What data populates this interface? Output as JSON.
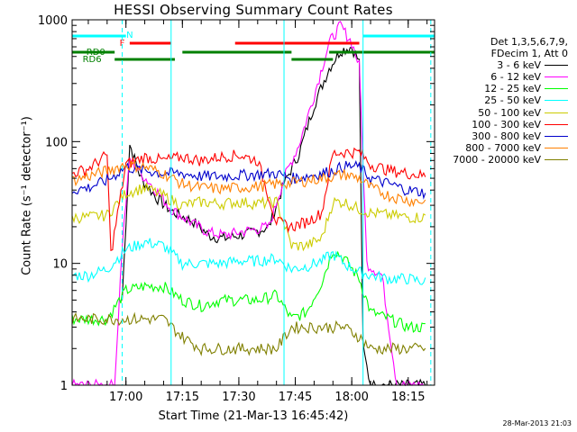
{
  "chart_data": {
    "type": "line",
    "title": "HESSI Observing Summary Count Rates",
    "xlabel": "Start Time (21-Mar-13 16:45:42)",
    "ylabel": "Count Rate (s⁻¹ detector⁻¹)",
    "x_ticks": [
      "17:00",
      "17:15",
      "17:30",
      "17:45",
      "18:00",
      "18:15"
    ],
    "y_ticks": [
      "1",
      "10",
      "100",
      "1000"
    ],
    "ylim": [
      1,
      1000
    ],
    "y_scale": "log",
    "xlim": [
      "16:45:42",
      "18:22:00"
    ],
    "legend_title": [
      "Det 1,3,5,6,7,9,",
      "FDecim 1, Att 0"
    ],
    "legend_position": "right",
    "timestamp": "28-Mar-2013 21:03",
    "flag_labels": {
      "n": "N",
      "f": "F",
      "rd0": "RD0",
      "rd6": "RD6"
    },
    "colors": {
      "n": "#00ffff",
      "f": "#ff0000",
      "rd": "#008000"
    },
    "series": [
      {
        "name": "3 - 6 keV",
        "color": "#000000",
        "x": [
          "16:45:42",
          "16:57",
          "16:59",
          "17:01",
          "17:04",
          "17:08",
          "17:12",
          "17:18",
          "17:22",
          "17:26",
          "17:30",
          "17:34",
          "17:38",
          "17:42",
          "17:46",
          "17:50",
          "17:54",
          "17:57",
          "18:00",
          "18:02",
          "18:03",
          "18:05",
          "18:08",
          "18:12",
          "18:16",
          "18:20"
        ],
        "values": [
          null,
          null,
          5,
          95,
          50,
          35,
          27,
          22,
          17,
          16,
          17,
          18,
          20,
          45,
          80,
          200,
          400,
          560,
          600,
          450,
          2,
          1,
          1,
          1,
          1,
          1
        ]
      },
      {
        "name": "6 - 12 keV",
        "color": "#ff00ff",
        "x": [
          "16:45:42",
          "16:57",
          "16:59",
          "17:01",
          "17:04",
          "17:08",
          "17:12",
          "17:18",
          "17:22",
          "17:26",
          "17:30",
          "17:34",
          "17:38",
          "17:42",
          "17:46",
          "17:50",
          "17:54",
          "17:57",
          "18:00",
          "18:02",
          "18:04",
          "18:08",
          "18:12",
          "18:16",
          "18:20"
        ],
        "values": [
          1,
          1,
          14,
          72,
          55,
          40,
          28,
          21,
          18,
          17,
          18,
          19,
          20,
          50,
          95,
          240,
          650,
          900,
          650,
          420,
          10,
          8,
          1,
          1,
          1
        ]
      },
      {
        "name": "12 - 25 keV",
        "color": "#00ff00",
        "x": [
          "16:45:42",
          "16:50",
          "16:55",
          "17:00",
          "17:05",
          "17:10",
          "17:15",
          "17:20",
          "17:25",
          "17:30",
          "17:35",
          "17:40",
          "17:44",
          "17:48",
          "17:52",
          "17:55",
          "17:58",
          "18:02",
          "18:05",
          "18:10",
          "18:15",
          "18:20"
        ],
        "values": [
          3.5,
          3.5,
          3.5,
          6,
          6.5,
          6.5,
          5,
          4.5,
          5,
          5,
          5,
          5.5,
          3.5,
          4,
          7,
          13,
          11,
          7.5,
          4,
          3.5,
          3,
          3
        ]
      },
      {
        "name": "25 - 50 keV",
        "color": "#00ffff",
        "x": [
          "16:45:42",
          "16:50",
          "16:55",
          "17:00",
          "17:05",
          "17:10",
          "17:15",
          "17:20",
          "17:25",
          "17:30",
          "17:35",
          "17:40",
          "17:44",
          "17:48",
          "17:52",
          "17:55",
          "17:58",
          "18:02",
          "18:05",
          "18:10",
          "18:15",
          "18:20"
        ],
        "values": [
          8,
          8,
          9,
          13,
          15,
          14,
          10,
          10,
          10,
          10.5,
          10.5,
          11,
          9,
          9.5,
          10.5,
          12,
          10,
          8.5,
          8,
          7.5,
          7.5,
          7
        ]
      },
      {
        "name": "50 - 100 keV",
        "color": "#cccc00",
        "x": [
          "16:45:42",
          "16:50",
          "16:55",
          "17:00",
          "17:05",
          "17:10",
          "17:15",
          "17:20",
          "17:25",
          "17:30",
          "17:35",
          "17:40",
          "17:44",
          "17:48",
          "17:52",
          "17:55",
          "17:58",
          "18:02",
          "18:05",
          "18:10",
          "18:15",
          "18:20"
        ],
        "values": [
          24,
          24,
          25,
          38,
          42,
          36,
          30,
          32,
          31,
          32,
          31,
          32,
          14,
          14,
          16,
          32,
          32,
          28,
          26,
          25,
          24,
          24
        ]
      },
      {
        "name": "100 - 300 keV",
        "color": "#ff0000",
        "x": [
          "16:45:42",
          "16:50",
          "16:55",
          "16:56",
          "17:00",
          "17:05",
          "17:10",
          "17:15",
          "17:20",
          "17:25",
          "17:30",
          "17:35",
          "17:40",
          "17:44",
          "17:48",
          "17:52",
          "17:55",
          "17:58",
          "18:02",
          "18:05",
          "18:10",
          "18:15",
          "18:20"
        ],
        "values": [
          55,
          60,
          78,
          12,
          65,
          75,
          70,
          75,
          70,
          75,
          78,
          70,
          22,
          20,
          22,
          26,
          80,
          82,
          82,
          65,
          58,
          55,
          52
        ]
      },
      {
        "name": "300 - 800 keV",
        "color": "#0000cc",
        "x": [
          "16:45:42",
          "16:50",
          "16:55",
          "17:00",
          "17:05",
          "17:10",
          "17:15",
          "17:20",
          "17:25",
          "17:30",
          "17:35",
          "17:40",
          "17:44",
          "17:48",
          "17:52",
          "17:55",
          "17:58",
          "18:02",
          "18:05",
          "18:10",
          "18:15",
          "18:20"
        ],
        "values": [
          40,
          42,
          48,
          62,
          58,
          55,
          55,
          52,
          52,
          53,
          54,
          55,
          50,
          52,
          55,
          58,
          63,
          62,
          50,
          45,
          40,
          38
        ]
      },
      {
        "name": "800 - 7000 keV",
        "color": "#ff8000",
        "x": [
          "16:45:42",
          "16:50",
          "16:55",
          "17:00",
          "17:05",
          "17:10",
          "17:15",
          "17:20",
          "17:25",
          "17:30",
          "17:35",
          "17:40",
          "17:44",
          "17:48",
          "17:52",
          "17:55",
          "17:58",
          "18:02",
          "18:05",
          "18:10",
          "18:15",
          "18:20"
        ],
        "values": [
          48,
          52,
          58,
          65,
          62,
          55,
          45,
          42,
          41,
          42,
          43,
          45,
          46,
          48,
          50,
          52,
          54,
          50,
          42,
          36,
          33,
          32
        ]
      },
      {
        "name": "7000 - 20000 keV",
        "color": "#808000",
        "x": [
          "16:45:42",
          "16:50",
          "16:55",
          "17:00",
          "17:05",
          "17:10",
          "17:15",
          "17:20",
          "17:25",
          "17:30",
          "17:35",
          "17:40",
          "17:44",
          "17:48",
          "17:52",
          "17:55",
          "17:58",
          "18:02",
          "18:05",
          "18:10",
          "18:15",
          "18:20"
        ],
        "values": [
          3.5,
          3.5,
          3.5,
          3.5,
          3.5,
          3.5,
          2.5,
          2,
          2,
          2,
          2,
          2,
          3,
          3,
          3,
          3,
          3,
          2.5,
          2,
          2,
          2,
          2
        ]
      }
    ]
  }
}
